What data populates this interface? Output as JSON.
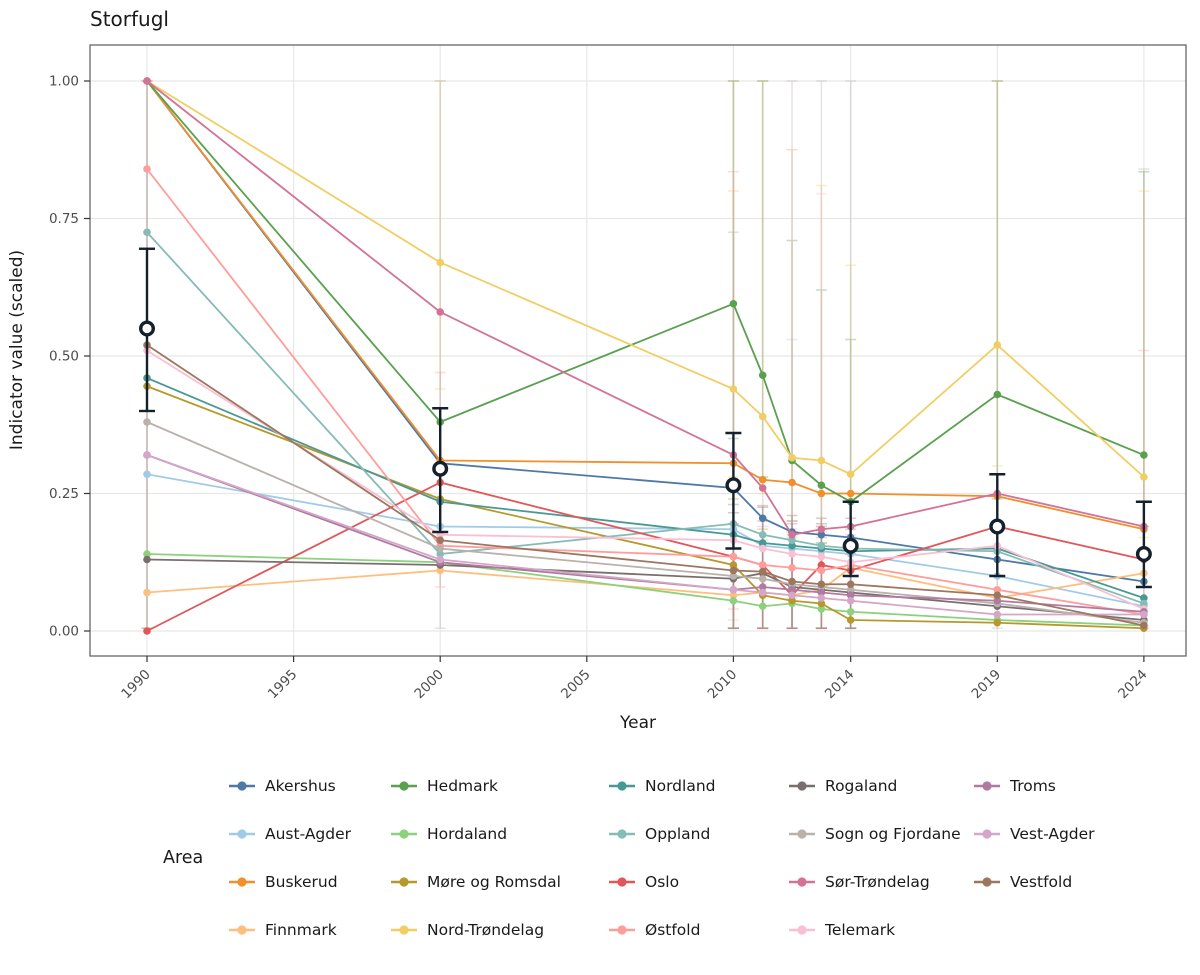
{
  "title": "Storfugl",
  "axes": {
    "x_label": "Year",
    "y_label": "Indicator value (scaled)",
    "x_tick_labels": [
      "1990",
      "1995",
      "2000",
      "2005",
      "2010",
      "2014",
      "2019",
      "2024"
    ],
    "y_tick_labels": [
      "0.00",
      "0.25",
      "0.50",
      "0.75",
      "1.00"
    ]
  },
  "legend": {
    "title": "Area"
  },
  "colors": {
    "mean": "#14212b",
    "panel_border": "#666666",
    "gridline": "#e8e8e8",
    "tick_text": "#4d4d4d",
    "text": "#1a1a1a"
  },
  "chart_data": {
    "type": "line",
    "title": "Storfugl",
    "xlabel": "Year",
    "ylabel": "Indicator value (scaled)",
    "x": [
      1990,
      2000,
      2010,
      2011,
      2012,
      2013,
      2014,
      2019,
      2024
    ],
    "x_ticks": [
      1990,
      1995,
      2000,
      2005,
      2010,
      2014,
      2019,
      2024
    ],
    "y_ticks": [
      0,
      0.25,
      0.5,
      0.75,
      1.0
    ],
    "ylim": [
      0,
      1
    ],
    "grid": true,
    "legend_position": "bottom",
    "series": [
      {
        "name": "Akershus",
        "color": "#4E79A7",
        "values": [
          1.0,
          0.305,
          0.26,
          0.205,
          0.18,
          0.175,
          0.17,
          0.13,
          0.09
        ],
        "lo": [
          null,
          null,
          null,
          null,
          null,
          null,
          null,
          null,
          null
        ],
        "hi": [
          null,
          null,
          null,
          null,
          null,
          null,
          null,
          null,
          null
        ]
      },
      {
        "name": "Aust-Agder",
        "color": "#A0CBE8",
        "values": [
          0.285,
          0.19,
          0.185,
          0.155,
          0.15,
          0.145,
          0.14,
          0.1,
          0.045
        ],
        "lo": [
          null,
          null,
          null,
          null,
          0.06,
          null,
          null,
          null,
          null
        ],
        "hi": [
          null,
          null,
          null,
          null,
          0.53,
          null,
          null,
          null,
          null
        ]
      },
      {
        "name": "Buskerud",
        "color": "#F28E2B",
        "values": [
          1.0,
          0.31,
          0.305,
          0.275,
          0.27,
          0.25,
          0.25,
          0.245,
          0.185
        ],
        "lo": [
          null,
          null,
          null,
          null,
          null,
          null,
          null,
          null,
          null
        ],
        "hi": [
          null,
          null,
          null,
          null,
          null,
          null,
          null,
          null,
          null
        ]
      },
      {
        "name": "Finnmark",
        "color": "#FFBE7D",
        "values": [
          0.07,
          0.11,
          0.065,
          0.07,
          0.065,
          0.075,
          0.115,
          0.06,
          0.105
        ],
        "lo": [
          null,
          null,
          0.02,
          null,
          null,
          null,
          null,
          null,
          null
        ],
        "hi": [
          null,
          null,
          0.8,
          null,
          null,
          null,
          null,
          null,
          null
        ]
      },
      {
        "name": "Hedmark",
        "color": "#59A14F",
        "values": [
          1.0,
          0.38,
          0.595,
          0.465,
          0.31,
          0.265,
          0.235,
          0.43,
          0.32
        ],
        "lo": [
          null,
          null,
          0.35,
          0.28,
          0.18,
          0.16,
          0.14,
          0.24,
          0.19
        ],
        "hi": [
          null,
          null,
          1.0,
          1.0,
          0.71,
          0.62,
          0.53,
          1.0,
          0.835
        ]
      },
      {
        "name": "Hordaland",
        "color": "#8CD17D",
        "values": [
          0.14,
          0.125,
          0.055,
          0.045,
          0.05,
          0.04,
          0.035,
          0.02,
          0.01
        ],
        "lo": [
          null,
          null,
          0.005,
          0.005,
          0.005,
          0.005,
          0.005,
          null,
          null
        ],
        "hi": [
          null,
          null,
          0.175,
          0.165,
          0.17,
          0.16,
          0.155,
          null,
          null
        ]
      },
      {
        "name": "Møre og Romsdal",
        "color": "#B6992D",
        "values": [
          0.445,
          0.24,
          0.12,
          0.065,
          0.055,
          0.05,
          0.02,
          0.015,
          0.005
        ],
        "lo": [
          null,
          null,
          0.005,
          0.005,
          0.005,
          0.005,
          0.005,
          null,
          null
        ],
        "hi": [
          null,
          null,
          0.24,
          0.185,
          0.175,
          0.17,
          0.14,
          null,
          null
        ]
      },
      {
        "name": "Nord-Trøndelag",
        "color": "#F1CE63",
        "values": [
          1.0,
          0.67,
          0.44,
          0.39,
          0.315,
          0.31,
          0.285,
          0.52,
          0.28
        ],
        "lo": [
          null,
          0.44,
          0.28,
          0.25,
          0.2,
          0.19,
          0.17,
          0.3,
          0.17
        ],
        "hi": [
          null,
          1.0,
          1.0,
          1.0,
          0.875,
          0.81,
          0.665,
          1.0,
          0.8
        ]
      },
      {
        "name": "Nordland",
        "color": "#499894",
        "values": [
          0.46,
          0.235,
          0.175,
          0.16,
          0.155,
          0.15,
          0.145,
          0.15,
          0.06
        ],
        "lo": [
          null,
          null,
          null,
          null,
          null,
          null,
          null,
          null,
          null
        ],
        "hi": [
          null,
          null,
          null,
          null,
          null,
          null,
          null,
          null,
          null
        ]
      },
      {
        "name": "Oppland",
        "color": "#86BCB6",
        "values": [
          0.725,
          0.14,
          0.195,
          0.175,
          0.165,
          0.155,
          0.15,
          0.145,
          0.05
        ],
        "lo": [
          null,
          null,
          0.1,
          null,
          null,
          null,
          null,
          null,
          null
        ],
        "hi": [
          null,
          null,
          0.725,
          null,
          null,
          null,
          null,
          null,
          null
        ]
      },
      {
        "name": "Oslo",
        "color": "#E15759",
        "values": [
          0.0,
          0.27,
          0.135,
          0.12,
          0.065,
          0.12,
          0.11,
          0.19,
          0.13
        ],
        "lo": [
          null,
          null,
          null,
          null,
          null,
          null,
          null,
          null,
          null
        ],
        "hi": [
          null,
          null,
          null,
          null,
          null,
          null,
          null,
          null,
          null
        ]
      },
      {
        "name": "Østfold",
        "color": "#FF9D9A",
        "values": [
          0.84,
          0.155,
          0.135,
          0.12,
          0.115,
          0.11,
          0.12,
          0.075,
          0.03
        ],
        "lo": [
          null,
          0.08,
          0.04,
          null,
          null,
          null,
          null,
          null,
          0.01
        ],
        "hi": [
          null,
          0.47,
          0.835,
          null,
          null,
          null,
          null,
          null,
          0.51
        ]
      },
      {
        "name": "Rogaland",
        "color": "#79706E",
        "values": [
          0.13,
          0.12,
          0.095,
          0.105,
          0.08,
          0.075,
          0.07,
          0.045,
          0.02
        ],
        "lo": [
          null,
          null,
          0.005,
          0.005,
          0.005,
          0.005,
          0.005,
          null,
          null
        ],
        "hi": [
          null,
          null,
          0.215,
          0.225,
          0.2,
          0.195,
          0.19,
          null,
          null
        ]
      },
      {
        "name": "Sogn og Fjordane",
        "color": "#BAB0AC",
        "values": [
          0.38,
          0.15,
          0.1,
          0.095,
          0.085,
          0.08,
          0.075,
          0.05,
          0.015
        ],
        "lo": [
          0.005,
          0.005,
          0.005,
          0.005,
          0.005,
          0.005,
          0.005,
          0.005,
          0.005
        ],
        "hi": [
          1.0,
          1.0,
          1.0,
          1.0,
          1.0,
          1.0,
          1.0,
          1.0,
          0.84
        ]
      },
      {
        "name": "Sør-Trøndelag",
        "color": "#D37295",
        "values": [
          1.0,
          0.58,
          0.32,
          0.26,
          0.175,
          0.185,
          0.19,
          0.25,
          0.19
        ],
        "lo": [
          null,
          null,
          null,
          null,
          null,
          null,
          null,
          null,
          null
        ],
        "hi": [
          null,
          null,
          null,
          null,
          null,
          null,
          null,
          null,
          null
        ]
      },
      {
        "name": "Telemark",
        "color": "#FABFD2",
        "values": [
          0.51,
          0.175,
          0.165,
          0.15,
          0.14,
          0.135,
          0.125,
          0.155,
          0.04
        ],
        "lo": [
          null,
          null,
          null,
          null,
          0.05,
          0.05,
          null,
          null,
          null
        ],
        "hi": [
          null,
          null,
          null,
          null,
          0.875,
          0.795,
          null,
          null,
          null
        ]
      },
      {
        "name": "Troms",
        "color": "#B07AA1",
        "values": [
          0.32,
          0.125,
          0.075,
          0.08,
          0.075,
          0.07,
          0.065,
          0.055,
          0.035
        ],
        "lo": [
          null,
          null,
          0.005,
          0.005,
          0.005,
          0.005,
          0.005,
          null,
          null
        ],
        "hi": [
          null,
          null,
          0.195,
          0.2,
          0.195,
          0.19,
          0.185,
          null,
          null
        ]
      },
      {
        "name": "Vest-Agder",
        "color": "#D4A6C8",
        "values": [
          0.32,
          0.13,
          0.075,
          0.07,
          0.065,
          0.06,
          0.055,
          0.03,
          0.03
        ],
        "lo": [
          null,
          null,
          0.005,
          0.005,
          0.005,
          0.005,
          0.005,
          null,
          null
        ],
        "hi": [
          null,
          null,
          0.195,
          0.19,
          0.185,
          0.18,
          0.175,
          null,
          null
        ]
      },
      {
        "name": "Vestfold",
        "color": "#9D7660",
        "values": [
          0.52,
          0.165,
          0.11,
          0.108,
          0.09,
          0.085,
          0.085,
          0.065,
          0.01
        ],
        "lo": [
          0.005,
          null,
          0.005,
          0.005,
          0.005,
          0.005,
          0.005,
          null,
          null
        ],
        "hi": [
          1.0,
          null,
          0.23,
          0.228,
          0.21,
          0.205,
          0.205,
          null,
          null
        ]
      }
    ],
    "mean_series": {
      "name": "Mean",
      "x": [
        1990,
        2000,
        2010,
        2014,
        2019,
        2024
      ],
      "values": [
        0.55,
        0.295,
        0.265,
        0.155,
        0.19,
        0.14
      ],
      "lo": [
        0.4,
        0.18,
        0.15,
        0.1,
        0.1,
        0.08
      ],
      "hi": [
        0.695,
        0.405,
        0.36,
        0.235,
        0.285,
        0.235
      ]
    }
  }
}
